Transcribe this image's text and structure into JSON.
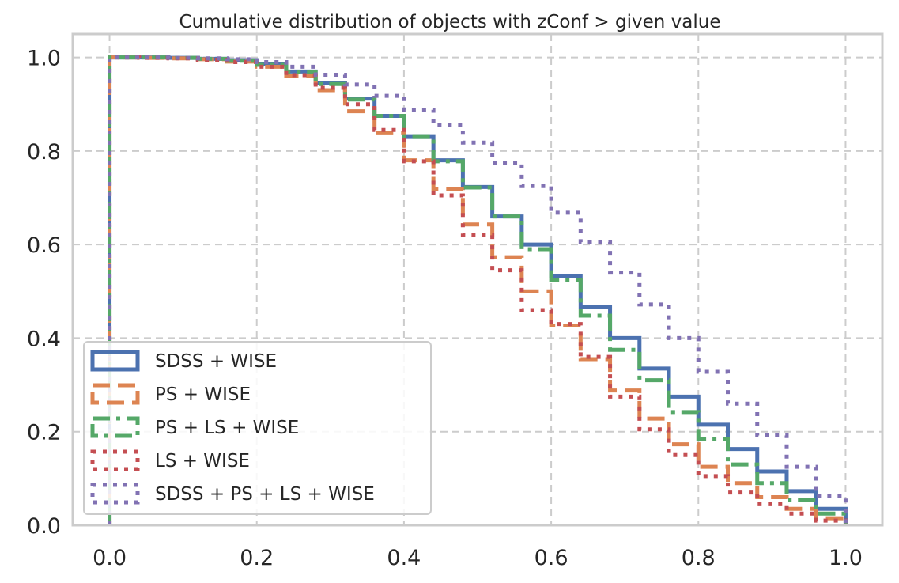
{
  "chart_data": {
    "type": "line",
    "title": "Cumulative distribution of objects with zConf > given value",
    "xlabel": "",
    "ylabel": "",
    "xlim": [
      -0.05,
      1.05
    ],
    "ylim": [
      0.0,
      1.05
    ],
    "xticks": [
      0.0,
      0.2,
      0.4,
      0.6,
      0.8,
      1.0
    ],
    "yticks": [
      0.0,
      0.2,
      0.4,
      0.6,
      0.8,
      1.0
    ],
    "xtick_labels": [
      "0.0",
      "0.2",
      "0.4",
      "0.6",
      "0.8",
      "1.0"
    ],
    "ytick_labels": [
      "0.0",
      "0.2",
      "0.4",
      "0.6",
      "0.8",
      "1.0"
    ],
    "grid": true,
    "legend_position": "lower-left",
    "step_edges": [
      0.0,
      0.04,
      0.08,
      0.12,
      0.16,
      0.2,
      0.24,
      0.28,
      0.32,
      0.36,
      0.4,
      0.44,
      0.48,
      0.52,
      0.56,
      0.6,
      0.64,
      0.68,
      0.72,
      0.76,
      0.8,
      0.84,
      0.88,
      0.92,
      0.96,
      1.0
    ],
    "series": [
      {
        "name": "SDSS + WISE",
        "color": "#4c72b0",
        "style": "solid",
        "values": [
          1.0,
          1.0,
          0.999,
          0.997,
          0.994,
          0.985,
          0.97,
          0.945,
          0.912,
          0.875,
          0.83,
          0.78,
          0.723,
          0.66,
          0.6,
          0.533,
          0.467,
          0.4,
          0.335,
          0.275,
          0.215,
          0.163,
          0.115,
          0.073,
          0.035
        ]
      },
      {
        "name": "PS + WISE",
        "color": "#dd8452",
        "style": "dashed",
        "values": [
          1.0,
          0.999,
          0.998,
          0.996,
          0.991,
          0.98,
          0.96,
          0.93,
          0.885,
          0.838,
          0.78,
          0.718,
          0.643,
          0.573,
          0.5,
          0.427,
          0.355,
          0.288,
          0.228,
          0.173,
          0.125,
          0.09,
          0.06,
          0.035,
          0.015
        ]
      },
      {
        "name": "PS + LS + WISE",
        "color": "#55a868",
        "style": "dashdot",
        "values": [
          1.0,
          1.0,
          0.999,
          0.997,
          0.993,
          0.984,
          0.968,
          0.943,
          0.91,
          0.875,
          0.83,
          0.778,
          0.722,
          0.66,
          0.59,
          0.525,
          0.448,
          0.375,
          0.31,
          0.242,
          0.185,
          0.13,
          0.09,
          0.055,
          0.025
        ]
      },
      {
        "name": "LS + WISE",
        "color": "#c44e52",
        "style": "dotted",
        "values": [
          1.0,
          0.999,
          0.998,
          0.995,
          0.99,
          0.98,
          0.962,
          0.935,
          0.9,
          0.845,
          0.778,
          0.705,
          0.62,
          0.545,
          0.46,
          0.43,
          0.36,
          0.275,
          0.205,
          0.15,
          0.105,
          0.07,
          0.045,
          0.025,
          0.01
        ]
      },
      {
        "name": "SDSS + PS + LS + WISE",
        "color": "#8172b3",
        "style": "dotted",
        "values": [
          1.0,
          1.0,
          0.999,
          0.998,
          0.996,
          0.99,
          0.98,
          0.963,
          0.942,
          0.918,
          0.888,
          0.855,
          0.818,
          0.775,
          0.725,
          0.668,
          0.605,
          0.54,
          0.472,
          0.4,
          0.328,
          0.26,
          0.192,
          0.125,
          0.062
        ]
      }
    ]
  }
}
